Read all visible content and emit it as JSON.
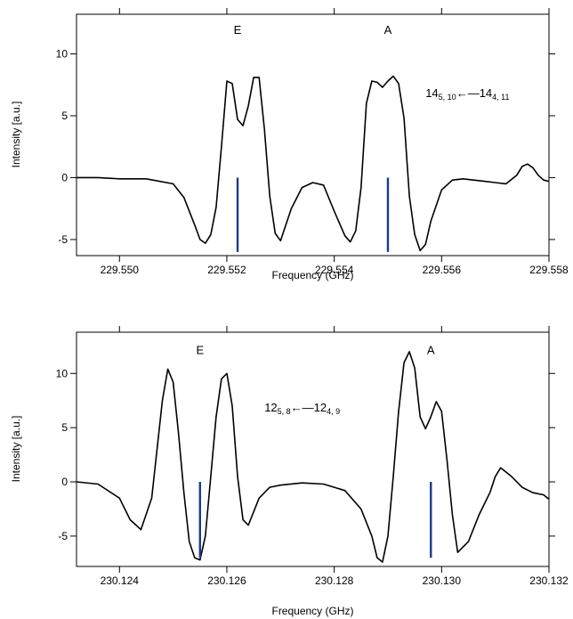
{
  "colors": {
    "spectrum": "#000000",
    "stick": "#1a3a8c",
    "axis": "#000000"
  },
  "chart_data": [
    {
      "type": "line",
      "xlabel": "Frequency (GHz)",
      "ylabel": "Intensity [a.u.]",
      "xlim": [
        229.5492,
        229.558
      ],
      "ylim": [
        -6.3,
        13.2
      ],
      "xticks": [
        "229.550",
        "229.552",
        "229.554",
        "229.556",
        "229.558"
      ],
      "xtick_values": [
        229.55,
        229.552,
        229.554,
        229.556,
        229.558
      ],
      "yticks": [
        "10",
        "5",
        "0",
        "-5"
      ],
      "ytick_values": [
        10,
        5,
        0,
        -5
      ],
      "annotations": {
        "E": {
          "text": "E",
          "x": 229.5522,
          "y": 11.6
        },
        "A": {
          "text": "A",
          "x": 229.555,
          "y": 11.6
        },
        "transition": {
          "upper": "14",
          "upper_sub": "5, 10",
          "arrow": "←—",
          "lower": "14",
          "lower_sub": "4, 11",
          "x": 229.5557,
          "y": 6.5
        }
      },
      "series": [
        {
          "x": [
            229.5492,
            229.5496,
            229.55,
            229.5505,
            229.551,
            229.5512,
            229.5514,
            229.5515,
            229.5516,
            229.5517,
            229.5518,
            229.5519,
            229.552,
            229.5521,
            229.5522,
            229.5523,
            229.5524,
            229.5525,
            229.5526,
            229.5527,
            229.5528,
            229.5529,
            229.553,
            229.5532,
            229.5534,
            229.5536,
            229.5538,
            229.554,
            229.5542,
            229.5543,
            229.5544,
            229.5545,
            229.5546,
            229.5547,
            229.5548,
            229.5549,
            229.555,
            229.5551,
            229.5552,
            229.5553,
            229.5554,
            229.5555,
            229.5556,
            229.5557,
            229.5558,
            229.556,
            229.5562,
            229.5564,
            229.5566,
            229.5568,
            229.557,
            229.5572,
            229.5574,
            229.5575,
            229.5576,
            229.5577,
            229.5578,
            229.5579,
            229.558
          ],
          "y": [
            0.0,
            0.0,
            -0.1,
            -0.1,
            -0.5,
            -1.6,
            -3.8,
            -5.0,
            -5.3,
            -4.6,
            -2.4,
            2.5,
            7.8,
            7.6,
            4.7,
            4.2,
            5.8,
            8.1,
            8.1,
            3.9,
            -1.5,
            -4.5,
            -5.1,
            -2.5,
            -0.8,
            -0.4,
            -0.6,
            -2.7,
            -4.7,
            -5.2,
            -4.3,
            -0.8,
            6.0,
            7.8,
            7.7,
            7.3,
            7.8,
            8.2,
            7.6,
            4.8,
            -1.5,
            -4.6,
            -5.9,
            -5.4,
            -3.5,
            -1.0,
            -0.2,
            -0.1,
            -0.2,
            -0.3,
            -0.4,
            -0.5,
            0.2,
            0.9,
            1.1,
            0.8,
            0.2,
            -0.2,
            -0.3
          ]
        }
      ],
      "sticks": [
        {
          "x": 229.5522,
          "y0": -6.0,
          "y1": 0.0
        },
        {
          "x": 229.555,
          "y0": -6.0,
          "y1": 0.0
        }
      ]
    },
    {
      "type": "line",
      "xlabel": "Frequency (GHz)",
      "ylabel": "Intensity [a.u.]",
      "xlim": [
        230.1232,
        230.132
      ],
      "ylim": [
        -7.8,
        13.8
      ],
      "xticks": [
        "230.124",
        "230.126",
        "230.128",
        "230.130",
        "230.132"
      ],
      "xtick_values": [
        230.124,
        230.126,
        230.128,
        230.13,
        230.132
      ],
      "yticks": [
        "10",
        "5",
        "0",
        "-5"
      ],
      "ytick_values": [
        10,
        5,
        0,
        -5
      ],
      "annotations": {
        "E": {
          "text": "E",
          "x": 230.1255,
          "y": 11.8
        },
        "A": {
          "text": "A",
          "x": 230.1298,
          "y": 11.8
        },
        "transition": {
          "upper": "12",
          "upper_sub": "5, 8",
          "arrow": "←—",
          "lower": "12",
          "lower_sub": "4, 9",
          "x": 230.1267,
          "y": 6.5
        }
      },
      "series": [
        {
          "x": [
            230.1232,
            230.1236,
            230.124,
            230.1242,
            230.1244,
            230.1246,
            230.1247,
            230.1248,
            230.1249,
            230.125,
            230.1251,
            230.1252,
            230.1253,
            230.1254,
            230.1255,
            230.1256,
            230.1257,
            230.1258,
            230.1259,
            230.126,
            230.1261,
            230.1262,
            230.1263,
            230.1264,
            230.1266,
            230.1268,
            230.127,
            230.1274,
            230.1278,
            230.1282,
            230.1285,
            230.1287,
            230.1288,
            230.1289,
            230.129,
            230.1291,
            230.1292,
            230.1293,
            230.1294,
            230.1295,
            230.1296,
            230.1297,
            230.1298,
            230.1299,
            230.13,
            230.1301,
            230.1302,
            230.1303,
            230.1305,
            230.1307,
            230.1309,
            230.131,
            230.1311,
            230.1313,
            230.1315,
            230.1317,
            230.1319,
            230.132
          ],
          "y": [
            0.0,
            -0.2,
            -1.5,
            -3.5,
            -4.4,
            -1.5,
            3.0,
            7.5,
            10.4,
            9.2,
            4.5,
            -1.0,
            -5.5,
            -7.0,
            -7.2,
            -5.0,
            0.5,
            6.0,
            9.5,
            10.0,
            7.0,
            0.5,
            -3.5,
            -4.0,
            -1.5,
            -0.5,
            -0.3,
            -0.1,
            -0.2,
            -0.8,
            -2.5,
            -5.0,
            -7.0,
            -7.4,
            -5.0,
            0.5,
            6.5,
            11.0,
            12.0,
            10.5,
            6.0,
            4.9,
            6.0,
            7.4,
            6.5,
            2.0,
            -3.0,
            -6.5,
            -5.5,
            -3.0,
            -1.0,
            0.5,
            1.3,
            0.5,
            -0.5,
            -1.0,
            -1.2,
            -1.6
          ]
        }
      ],
      "sticks": [
        {
          "x": 230.1255,
          "y0": -7.0,
          "y1": 0.0
        },
        {
          "x": 230.1298,
          "y0": -7.0,
          "y1": 0.0
        }
      ]
    }
  ]
}
